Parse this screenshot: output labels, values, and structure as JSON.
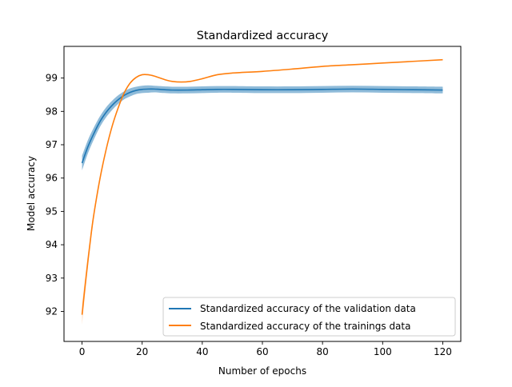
{
  "chart_data": {
    "type": "line",
    "title": "Standardized accuracy",
    "xlabel": "Number of epochs",
    "ylabel": "Model accuracy",
    "xlim": [
      -6,
      126
    ],
    "ylim": [
      91.1,
      99.95
    ],
    "xticks": [
      0,
      20,
      40,
      60,
      80,
      100,
      120
    ],
    "yticks": [
      92,
      93,
      94,
      95,
      96,
      97,
      98,
      99
    ],
    "legend_position": "lower-right",
    "grid": false,
    "series": [
      {
        "name": "Standardized accuracy of the validation data",
        "color": "#1f77b4",
        "band_color": "#1f77b4",
        "x": [
          0,
          2,
          4,
          6,
          8,
          10,
          12,
          14,
          16,
          18,
          20,
          22,
          24,
          26,
          30,
          35,
          40,
          45,
          50,
          60,
          70,
          80,
          90,
          100,
          110,
          120
        ],
        "y": [
          96.45,
          96.95,
          97.35,
          97.7,
          97.97,
          98.18,
          98.35,
          98.48,
          98.57,
          98.63,
          98.66,
          98.67,
          98.67,
          98.66,
          98.64,
          98.64,
          98.65,
          98.66,
          98.66,
          98.65,
          98.65,
          98.66,
          98.67,
          98.66,
          98.65,
          98.64
        ],
        "band_half_width": [
          0.22,
          0.2,
          0.18,
          0.16,
          0.15,
          0.14,
          0.13,
          0.12,
          0.12,
          0.11,
          0.11,
          0.11,
          0.1,
          0.1,
          0.1,
          0.1,
          0.1,
          0.1,
          0.1,
          0.1,
          0.1,
          0.1,
          0.1,
          0.1,
          0.1,
          0.1
        ]
      },
      {
        "name": "Standardized accuracy of the trainings data",
        "color": "#ff7f0e",
        "band_color": "#ff7f0e",
        "x": [
          0,
          1,
          2,
          3,
          4,
          6,
          8,
          10,
          12,
          14,
          16,
          18,
          20,
          22,
          24,
          26,
          28,
          30,
          33,
          36,
          40,
          45,
          50,
          60,
          70,
          80,
          90,
          100,
          110,
          120
        ],
        "y": [
          91.9,
          92.75,
          93.55,
          94.3,
          94.95,
          96.0,
          96.85,
          97.55,
          98.1,
          98.55,
          98.85,
          99.02,
          99.1,
          99.1,
          99.06,
          99.0,
          98.94,
          98.9,
          98.88,
          98.9,
          98.98,
          99.1,
          99.15,
          99.2,
          99.27,
          99.35,
          99.4,
          99.45,
          99.5,
          99.55
        ],
        "band_half_width": [
          0.3,
          0.25,
          0.2,
          0.15,
          0.1,
          0.06,
          0.04,
          0.03,
          0.02,
          0.02,
          0.01,
          0.01,
          0.01,
          0.01,
          0.01,
          0.01,
          0.01,
          0.01,
          0.01,
          0.01,
          0.01,
          0.01,
          0.01,
          0.01,
          0.01,
          0.01,
          0.01,
          0.01,
          0.01,
          0.01
        ]
      }
    ]
  }
}
